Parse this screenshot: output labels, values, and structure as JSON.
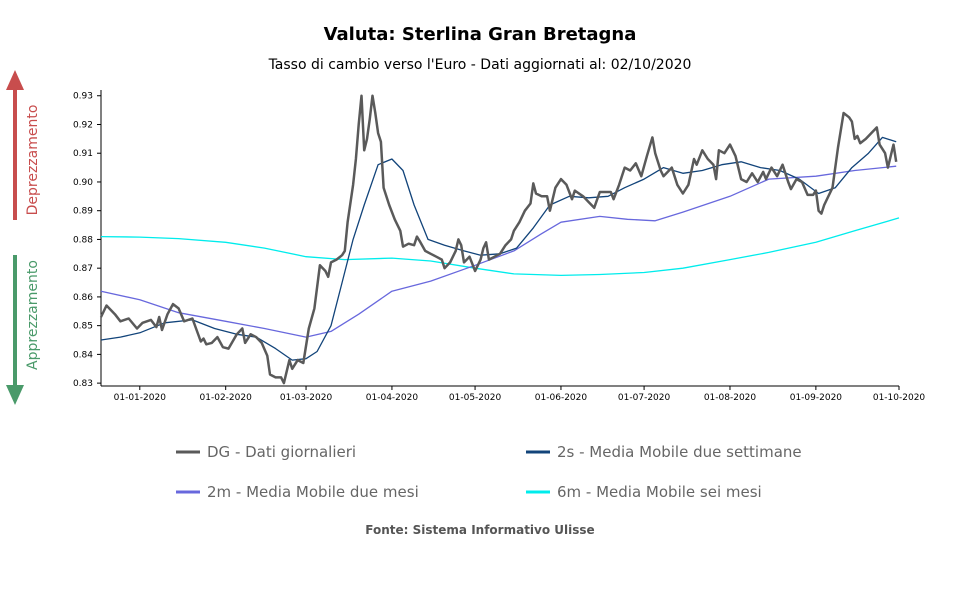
{
  "header": {
    "title": "Valuta: Sterlina Gran Bretagna",
    "subtitle": "Tasso di cambio verso l'Euro - Dati aggiornati al: 02/10/2020"
  },
  "side_labels": {
    "up": "Deprezzamento",
    "down": "Apprezzamento",
    "up_color": "#c84d4d",
    "down_color": "#4a9a6a"
  },
  "source": "Fonte: Sistema Informativo Ulisse",
  "chart_data": {
    "type": "line",
    "title": "Valuta: Sterlina Gran Bretagna",
    "subtitle": "Tasso di cambio verso l'Euro - Dati aggiornati al: 02/10/2020",
    "xlabel": "",
    "ylabel": "",
    "x_range": [
      "2019-12-18",
      "2020-10-01"
    ],
    "ylim": [
      0.829,
      0.932
    ],
    "y_ticks": [
      0.83,
      0.84,
      0.85,
      0.86,
      0.87,
      0.88,
      0.89,
      0.9,
      0.91,
      0.92,
      0.93
    ],
    "y_tick_labels": [
      "0.83",
      "0.84",
      "0.85",
      "0.86",
      "0.87",
      "0.88",
      "0.89",
      "0.90",
      "0.91",
      "0.92",
      "0.93"
    ],
    "x_ticks": [
      "2020-01-01",
      "2020-02-01",
      "2020-03-01",
      "2020-04-01",
      "2020-05-01",
      "2020-06-01",
      "2020-07-01",
      "2020-08-01",
      "2020-09-01",
      "2020-10-01"
    ],
    "x_tick_labels": [
      "01-01-2020",
      "01-02-2020",
      "01-03-2020",
      "01-04-2020",
      "01-05-2020",
      "01-06-2020",
      "01-07-2020",
      "01-08-2020",
      "01-09-2020",
      "01-10-2020"
    ],
    "grid": false,
    "legend_position": "bottom",
    "series": [
      {
        "name": "DG - Dati giornalieri",
        "color": "#5a5a5a",
        "points": [
          [
            "2019-12-18",
            0.853
          ],
          [
            "2019-12-20",
            0.857
          ],
          [
            "2019-12-23",
            0.854
          ],
          [
            "2019-12-25",
            0.8515
          ],
          [
            "2019-12-28",
            0.8525
          ],
          [
            "2019-12-31",
            0.849
          ],
          [
            "2020-01-02",
            0.851
          ],
          [
            "2020-01-05",
            0.852
          ],
          [
            "2020-01-07",
            0.8495
          ],
          [
            "2020-01-08",
            0.853
          ],
          [
            "2020-01-09",
            0.8485
          ],
          [
            "2020-01-11",
            0.854
          ],
          [
            "2020-01-13",
            0.8575
          ],
          [
            "2020-01-15",
            0.856
          ],
          [
            "2020-01-17",
            0.8515
          ],
          [
            "2020-01-20",
            0.8525
          ],
          [
            "2020-01-23",
            0.8445
          ],
          [
            "2020-01-24",
            0.8455
          ],
          [
            "2020-01-25",
            0.8435
          ],
          [
            "2020-01-27",
            0.844
          ],
          [
            "2020-01-29",
            0.846
          ],
          [
            "2020-01-31",
            0.8425
          ],
          [
            "2020-02-02",
            0.842
          ],
          [
            "2020-02-05",
            0.847
          ],
          [
            "2020-02-07",
            0.849
          ],
          [
            "2020-02-08",
            0.844
          ],
          [
            "2020-02-10",
            0.847
          ],
          [
            "2020-02-12",
            0.846
          ],
          [
            "2020-02-14",
            0.844
          ],
          [
            "2020-02-16",
            0.8395
          ],
          [
            "2020-02-17",
            0.833
          ],
          [
            "2020-02-19",
            0.832
          ],
          [
            "2020-02-21",
            0.832
          ],
          [
            "2020-02-22",
            0.83
          ],
          [
            "2020-02-24",
            0.838
          ],
          [
            "2020-02-25",
            0.835
          ],
          [
            "2020-02-27",
            0.838
          ],
          [
            "2020-02-29",
            0.837
          ],
          [
            "2020-03-02",
            0.849
          ],
          [
            "2020-03-04",
            0.856
          ],
          [
            "2020-03-06",
            0.871
          ],
          [
            "2020-03-08",
            0.869
          ],
          [
            "2020-03-09",
            0.867
          ],
          [
            "2020-03-10",
            0.872
          ],
          [
            "2020-03-12",
            0.873
          ],
          [
            "2020-03-14",
            0.8745
          ],
          [
            "2020-03-15",
            0.876
          ],
          [
            "2020-03-16",
            0.886
          ],
          [
            "2020-03-18",
            0.899
          ],
          [
            "2020-03-19",
            0.908
          ],
          [
            "2020-03-20",
            0.92
          ],
          [
            "2020-03-21",
            0.93
          ],
          [
            "2020-03-22",
            0.911
          ],
          [
            "2020-03-23",
            0.915
          ],
          [
            "2020-03-24",
            0.922
          ],
          [
            "2020-03-25",
            0.93
          ],
          [
            "2020-03-26",
            0.924
          ],
          [
            "2020-03-27",
            0.917
          ],
          [
            "2020-03-28",
            0.914
          ],
          [
            "2020-03-29",
            0.898
          ],
          [
            "2020-03-31",
            0.892
          ],
          [
            "2020-04-02",
            0.887
          ],
          [
            "2020-04-04",
            0.883
          ],
          [
            "2020-04-05",
            0.8775
          ],
          [
            "2020-04-07",
            0.8785
          ],
          [
            "2020-04-09",
            0.878
          ],
          [
            "2020-04-10",
            0.881
          ],
          [
            "2020-04-11",
            0.8795
          ],
          [
            "2020-04-13",
            0.876
          ],
          [
            "2020-04-15",
            0.875
          ],
          [
            "2020-04-17",
            0.874
          ],
          [
            "2020-04-19",
            0.873
          ],
          [
            "2020-04-20",
            0.87
          ],
          [
            "2020-04-22",
            0.872
          ],
          [
            "2020-04-24",
            0.876
          ],
          [
            "2020-04-25",
            0.88
          ],
          [
            "2020-04-26",
            0.878
          ],
          [
            "2020-04-27",
            0.872
          ],
          [
            "2020-04-29",
            0.874
          ],
          [
            "2020-05-01",
            0.869
          ],
          [
            "2020-05-03",
            0.873
          ],
          [
            "2020-05-04",
            0.877
          ],
          [
            "2020-05-05",
            0.879
          ],
          [
            "2020-05-06",
            0.873
          ],
          [
            "2020-05-08",
            0.874
          ],
          [
            "2020-05-10",
            0.875
          ],
          [
            "2020-05-12",
            0.878
          ],
          [
            "2020-05-14",
            0.88
          ],
          [
            "2020-05-15",
            0.883
          ],
          [
            "2020-05-17",
            0.886
          ],
          [
            "2020-05-19",
            0.89
          ],
          [
            "2020-05-21",
            0.8925
          ],
          [
            "2020-05-22",
            0.8995
          ],
          [
            "2020-05-23",
            0.896
          ],
          [
            "2020-05-25",
            0.895
          ],
          [
            "2020-05-27",
            0.895
          ],
          [
            "2020-05-28",
            0.89
          ],
          [
            "2020-05-30",
            0.898
          ],
          [
            "2020-06-01",
            0.901
          ],
          [
            "2020-06-03",
            0.899
          ],
          [
            "2020-06-05",
            0.894
          ],
          [
            "2020-06-06",
            0.897
          ],
          [
            "2020-06-09",
            0.895
          ],
          [
            "2020-06-11",
            0.893
          ],
          [
            "2020-06-13",
            0.891
          ],
          [
            "2020-06-15",
            0.8965
          ],
          [
            "2020-06-17",
            0.8965
          ],
          [
            "2020-06-19",
            0.8965
          ],
          [
            "2020-06-20",
            0.894
          ],
          [
            "2020-06-22",
            0.899
          ],
          [
            "2020-06-24",
            0.905
          ],
          [
            "2020-06-26",
            0.904
          ],
          [
            "2020-06-28",
            0.9065
          ],
          [
            "2020-06-30",
            0.902
          ],
          [
            "2020-07-02",
            0.909
          ],
          [
            "2020-07-04",
            0.9155
          ],
          [
            "2020-07-05",
            0.91
          ],
          [
            "2020-07-07",
            0.904
          ],
          [
            "2020-07-08",
            0.902
          ],
          [
            "2020-07-11",
            0.905
          ],
          [
            "2020-07-13",
            0.899
          ],
          [
            "2020-07-15",
            0.896
          ],
          [
            "2020-07-17",
            0.899
          ],
          [
            "2020-07-19",
            0.908
          ],
          [
            "2020-07-20",
            0.906
          ],
          [
            "2020-07-22",
            0.911
          ],
          [
            "2020-07-24",
            0.908
          ],
          [
            "2020-07-26",
            0.906
          ],
          [
            "2020-07-27",
            0.901
          ],
          [
            "2020-07-28",
            0.911
          ],
          [
            "2020-07-30",
            0.91
          ],
          [
            "2020-08-01",
            0.913
          ],
          [
            "2020-08-03",
            0.909
          ],
          [
            "2020-08-05",
            0.901
          ],
          [
            "2020-08-07",
            0.9
          ],
          [
            "2020-08-09",
            0.903
          ],
          [
            "2020-08-11",
            0.9
          ],
          [
            "2020-08-13",
            0.9035
          ],
          [
            "2020-08-14",
            0.901
          ],
          [
            "2020-08-16",
            0.905
          ],
          [
            "2020-08-18",
            0.902
          ],
          [
            "2020-08-20",
            0.906
          ],
          [
            "2020-08-22",
            0.9
          ],
          [
            "2020-08-23",
            0.8975
          ],
          [
            "2020-08-25",
            0.901
          ],
          [
            "2020-08-27",
            0.9
          ],
          [
            "2020-08-29",
            0.8955
          ],
          [
            "2020-08-31",
            0.8955
          ],
          [
            "2020-09-01",
            0.897
          ],
          [
            "2020-09-02",
            0.89
          ],
          [
            "2020-09-03",
            0.889
          ],
          [
            "2020-09-04",
            0.892
          ],
          [
            "2020-09-07",
            0.898
          ],
          [
            "2020-09-09",
            0.912
          ],
          [
            "2020-09-11",
            0.924
          ],
          [
            "2020-09-13",
            0.9225
          ],
          [
            "2020-09-14",
            0.921
          ],
          [
            "2020-09-15",
            0.915
          ],
          [
            "2020-09-16",
            0.916
          ],
          [
            "2020-09-17",
            0.9135
          ],
          [
            "2020-09-19",
            0.915
          ],
          [
            "2020-09-21",
            0.917
          ],
          [
            "2020-09-23",
            0.919
          ],
          [
            "2020-09-24",
            0.913
          ],
          [
            "2020-09-26",
            0.91
          ],
          [
            "2020-09-27",
            0.905
          ],
          [
            "2020-09-29",
            0.913
          ],
          [
            "2020-09-30",
            0.907
          ]
        ]
      },
      {
        "name": "2s - Media Mobile due settimane",
        "color": "#12447a",
        "points": [
          [
            "2019-12-18",
            0.845
          ],
          [
            "2019-12-25",
            0.846
          ],
          [
            "2020-01-01",
            0.8475
          ],
          [
            "2020-01-10",
            0.851
          ],
          [
            "2020-01-20",
            0.852
          ],
          [
            "2020-01-28",
            0.849
          ],
          [
            "2020-02-05",
            0.847
          ],
          [
            "2020-02-12",
            0.846
          ],
          [
            "2020-02-19",
            0.842
          ],
          [
            "2020-02-25",
            0.838
          ],
          [
            "2020-03-01",
            0.8385
          ],
          [
            "2020-03-05",
            0.841
          ],
          [
            "2020-03-10",
            0.85
          ],
          [
            "2020-03-14",
            0.865
          ],
          [
            "2020-03-18",
            0.88
          ],
          [
            "2020-03-22",
            0.892
          ],
          [
            "2020-03-27",
            0.906
          ],
          [
            "2020-04-01",
            0.908
          ],
          [
            "2020-04-05",
            0.904
          ],
          [
            "2020-04-09",
            0.892
          ],
          [
            "2020-04-14",
            0.88
          ],
          [
            "2020-04-20",
            0.878
          ],
          [
            "2020-04-27",
            0.876
          ],
          [
            "2020-05-03",
            0.8745
          ],
          [
            "2020-05-10",
            0.875
          ],
          [
            "2020-05-16",
            0.877
          ],
          [
            "2020-05-22",
            0.884
          ],
          [
            "2020-05-28",
            0.892
          ],
          [
            "2020-06-04",
            0.895
          ],
          [
            "2020-06-11",
            0.8945
          ],
          [
            "2020-06-18",
            0.895
          ],
          [
            "2020-06-24",
            0.898
          ],
          [
            "2020-07-01",
            0.901
          ],
          [
            "2020-07-08",
            0.905
          ],
          [
            "2020-07-15",
            0.903
          ],
          [
            "2020-07-22",
            0.904
          ],
          [
            "2020-07-29",
            0.906
          ],
          [
            "2020-08-05",
            0.907
          ],
          [
            "2020-08-12",
            0.905
          ],
          [
            "2020-08-19",
            0.904
          ],
          [
            "2020-08-26",
            0.901
          ],
          [
            "2020-09-02",
            0.896
          ],
          [
            "2020-09-08",
            0.898
          ],
          [
            "2020-09-14",
            0.905
          ],
          [
            "2020-09-20",
            0.91
          ],
          [
            "2020-09-25",
            0.9155
          ],
          [
            "2020-09-30",
            0.914
          ]
        ]
      },
      {
        "name": "2m - Media Mobile due mesi",
        "color": "#6868dd",
        "points": [
          [
            "2019-12-18",
            0.862
          ],
          [
            "2020-01-01",
            0.859
          ],
          [
            "2020-01-15",
            0.8545
          ],
          [
            "2020-02-01",
            0.8515
          ],
          [
            "2020-02-15",
            0.849
          ],
          [
            "2020-03-01",
            0.846
          ],
          [
            "2020-03-10",
            0.848
          ],
          [
            "2020-03-20",
            0.854
          ],
          [
            "2020-04-01",
            0.862
          ],
          [
            "2020-04-15",
            0.8655
          ],
          [
            "2020-05-01",
            0.871
          ],
          [
            "2020-05-15",
            0.876
          ],
          [
            "2020-05-25",
            0.882
          ],
          [
            "2020-06-01",
            0.886
          ],
          [
            "2020-06-15",
            0.888
          ],
          [
            "2020-06-25",
            0.887
          ],
          [
            "2020-07-05",
            0.8865
          ],
          [
            "2020-07-15",
            0.8895
          ],
          [
            "2020-08-01",
            0.895
          ],
          [
            "2020-08-15",
            0.901
          ],
          [
            "2020-09-01",
            0.902
          ],
          [
            "2020-09-15",
            0.904
          ],
          [
            "2020-09-30",
            0.9055
          ]
        ]
      },
      {
        "name": "6m - Media Mobile sei mesi",
        "color": "#00ecec",
        "points": [
          [
            "2019-12-18",
            0.881
          ],
          [
            "2020-01-01",
            0.8808
          ],
          [
            "2020-01-15",
            0.8803
          ],
          [
            "2020-02-01",
            0.879
          ],
          [
            "2020-02-15",
            0.877
          ],
          [
            "2020-03-01",
            0.874
          ],
          [
            "2020-03-15",
            0.873
          ],
          [
            "2020-04-01",
            0.8735
          ],
          [
            "2020-04-15",
            0.8725
          ],
          [
            "2020-05-01",
            0.87
          ],
          [
            "2020-05-15",
            0.868
          ],
          [
            "2020-06-01",
            0.8675
          ],
          [
            "2020-06-15",
            0.8678
          ],
          [
            "2020-07-01",
            0.8685
          ],
          [
            "2020-07-15",
            0.87
          ],
          [
            "2020-08-01",
            0.873
          ],
          [
            "2020-08-15",
            0.8755
          ],
          [
            "2020-09-01",
            0.879
          ],
          [
            "2020-09-15",
            0.883
          ],
          [
            "2020-10-01",
            0.8875
          ]
        ]
      }
    ]
  }
}
